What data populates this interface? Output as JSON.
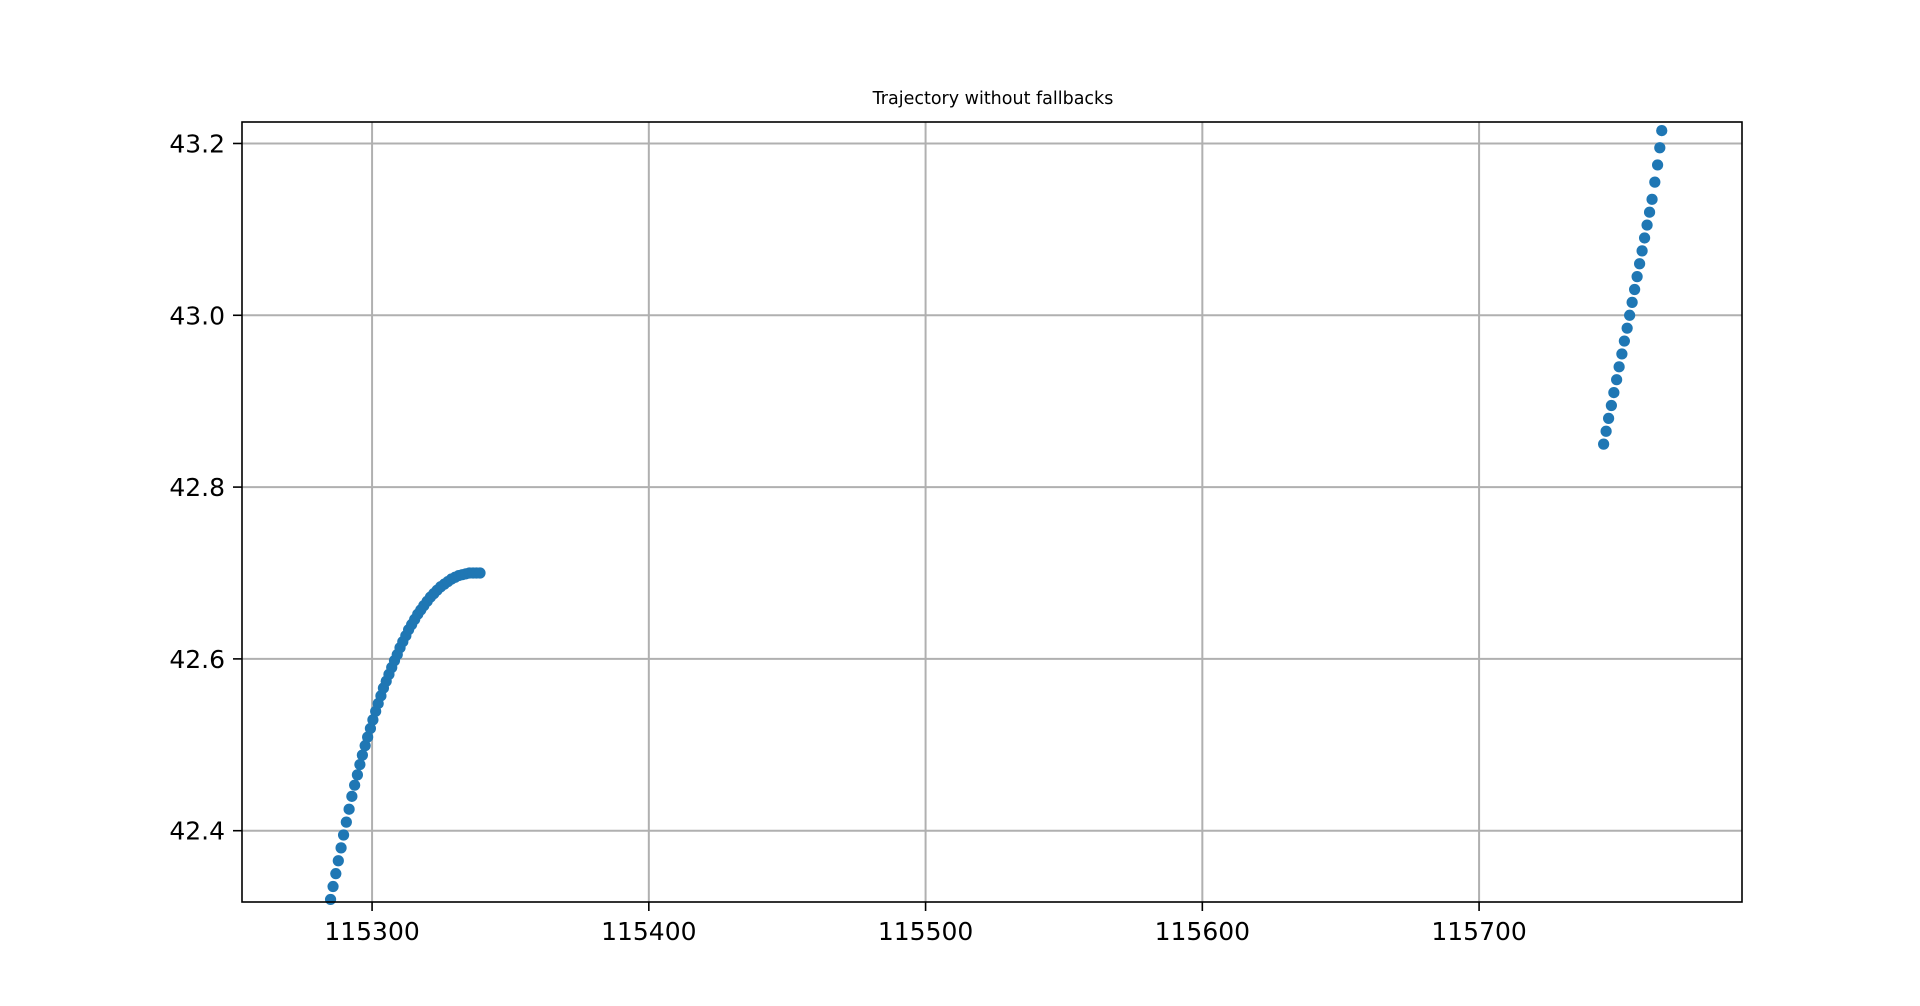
{
  "chart_data": {
    "type": "scatter",
    "title": "Trajectory without fallbacks",
    "xlabel": "",
    "ylabel": "",
    "xlim": [
      115253,
      115795
    ],
    "ylim": [
      42.317,
      43.225
    ],
    "xticks": [
      115300,
      115400,
      115500,
      115600,
      115700
    ],
    "xtick_labels": [
      "115300",
      "115400",
      "115500",
      "115600",
      "115700"
    ],
    "yticks": [
      42.4,
      42.6,
      42.8,
      43.0,
      43.2
    ],
    "ytick_labels": [
      "42.4",
      "42.6",
      "42.8",
      "43.0",
      "43.2"
    ],
    "grid": true,
    "legend": "none",
    "marker_color": "#1f77b4",
    "series": [
      {
        "points": [
          [
            115285.0,
            42.32
          ],
          [
            115285.9,
            42.335
          ],
          [
            115286.9,
            42.35
          ],
          [
            115287.8,
            42.365
          ],
          [
            115288.8,
            42.38
          ],
          [
            115289.7,
            42.395
          ],
          [
            115290.7,
            42.41
          ],
          [
            115291.7,
            42.425
          ],
          [
            115292.7,
            42.44
          ],
          [
            115293.7,
            42.453
          ],
          [
            115294.7,
            42.465
          ],
          [
            115295.6,
            42.477
          ],
          [
            115296.5,
            42.488
          ],
          [
            115297.5,
            42.499
          ],
          [
            115298.4,
            42.509
          ],
          [
            115299.4,
            42.519
          ],
          [
            115300.3,
            42.529
          ],
          [
            115301.3,
            42.539
          ],
          [
            115302.2,
            42.548
          ],
          [
            115303.2,
            42.557
          ],
          [
            115304.1,
            42.566
          ],
          [
            115305.1,
            42.574
          ],
          [
            115306.1,
            42.582
          ],
          [
            115307.1,
            42.59
          ],
          [
            115308.1,
            42.598
          ],
          [
            115309.1,
            42.605
          ],
          [
            115310.1,
            42.613
          ],
          [
            115311.1,
            42.62
          ],
          [
            115312.2,
            42.627
          ],
          [
            115313.2,
            42.634
          ],
          [
            115314.3,
            42.64
          ],
          [
            115315.4,
            42.646
          ],
          [
            115316.5,
            42.652
          ],
          [
            115317.6,
            42.657
          ],
          [
            115318.7,
            42.662
          ],
          [
            115319.9,
            42.667
          ],
          [
            115321.1,
            42.672
          ],
          [
            115322.3,
            42.676
          ],
          [
            115323.5,
            42.68
          ],
          [
            115324.8,
            42.684
          ],
          [
            115326.1,
            42.687
          ],
          [
            115327.4,
            42.69
          ],
          [
            115328.7,
            42.693
          ],
          [
            115330.0,
            42.695
          ],
          [
            115331.3,
            42.697
          ],
          [
            115332.6,
            42.698
          ],
          [
            115333.9,
            42.699
          ],
          [
            115335.2,
            42.7
          ],
          [
            115336.5,
            42.7
          ],
          [
            115337.7,
            42.7
          ],
          [
            115339.0,
            42.7
          ]
        ]
      },
      {
        "points": [
          [
            115745.0,
            42.85
          ],
          [
            115745.9,
            42.865
          ],
          [
            115746.8,
            42.88
          ],
          [
            115747.8,
            42.895
          ],
          [
            115748.7,
            42.91
          ],
          [
            115749.7,
            42.925
          ],
          [
            115750.6,
            42.94
          ],
          [
            115751.6,
            42.955
          ],
          [
            115752.5,
            42.97
          ],
          [
            115753.5,
            42.985
          ],
          [
            115754.4,
            43.0
          ],
          [
            115755.3,
            43.015
          ],
          [
            115756.2,
            43.03
          ],
          [
            115757.1,
            43.045
          ],
          [
            115758.0,
            43.06
          ],
          [
            115758.9,
            43.075
          ],
          [
            115759.8,
            43.09
          ],
          [
            115760.7,
            43.105
          ],
          [
            115761.6,
            43.12
          ],
          [
            115762.5,
            43.135
          ],
          [
            115763.5,
            43.155
          ],
          [
            115764.5,
            43.175
          ],
          [
            115765.3,
            43.195
          ],
          [
            115766.0,
            43.215
          ]
        ]
      }
    ]
  }
}
